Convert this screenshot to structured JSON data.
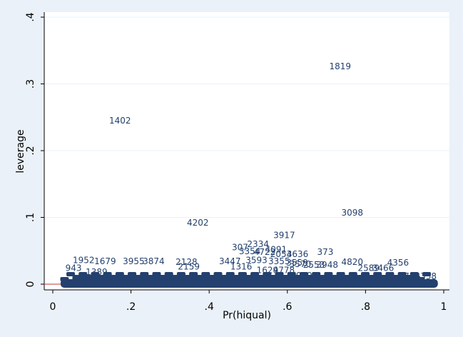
{
  "chart_data": {
    "type": "scatter",
    "marker": "observation-number-labels",
    "xlabel": "Pr(hiqual)",
    "ylabel": "leverage",
    "xlim": [
      0,
      1
    ],
    "ylim": [
      0,
      0.4
    ],
    "x_ticks": [
      0,
      0.2,
      0.4,
      0.6,
      0.8,
      1
    ],
    "x_tick_labels": [
      "0",
      ".2",
      ".4",
      ".6",
      ".8",
      "1"
    ],
    "y_ticks": [
      0,
      0.1,
      0.2,
      0.3,
      0.4
    ],
    "y_tick_labels": [
      "0",
      ".1",
      ".2",
      ".3",
      ".4"
    ],
    "grid": "horizontal",
    "legend": "none",
    "colors": {
      "background": "#eaf1f8",
      "plot_area": "#ffffff",
      "grid": "#eaf1f8",
      "marker": "#23406e",
      "reference_line": "#c0392b"
    },
    "points": [
      {
        "label": "1819",
        "x": 0.735,
        "y": 0.326
      },
      {
        "label": "1402",
        "x": 0.172,
        "y": 0.245
      },
      {
        "label": "3098",
        "x": 0.766,
        "y": 0.107
      },
      {
        "label": "4202",
        "x": 0.371,
        "y": 0.092
      },
      {
        "label": "3917",
        "x": 0.592,
        "y": 0.073
      },
      {
        "label": "2334",
        "x": 0.525,
        "y": 0.06
      },
      {
        "label": "307",
        "x": 0.479,
        "y": 0.055
      },
      {
        "label": "4091",
        "x": 0.571,
        "y": 0.052
      },
      {
        "label": "3354",
        "x": 0.504,
        "y": 0.049
      },
      {
        "label": "4722",
        "x": 0.542,
        "y": 0.048
      },
      {
        "label": "373",
        "x": 0.697,
        "y": 0.048
      },
      {
        "label": "2054",
        "x": 0.584,
        "y": 0.045
      },
      {
        "label": "3636",
        "x": 0.626,
        "y": 0.045
      },
      {
        "label": "1952",
        "x": 0.079,
        "y": 0.036
      },
      {
        "label": "1679",
        "x": 0.134,
        "y": 0.034
      },
      {
        "label": "3955",
        "x": 0.207,
        "y": 0.034
      },
      {
        "label": "3874",
        "x": 0.258,
        "y": 0.034
      },
      {
        "label": "2128",
        "x": 0.342,
        "y": 0.033
      },
      {
        "label": "3447",
        "x": 0.453,
        "y": 0.034
      },
      {
        "label": "3355",
        "x": 0.579,
        "y": 0.034
      },
      {
        "label": "3593",
        "x": 0.521,
        "y": 0.036
      },
      {
        "label": "3559",
        "x": 0.625,
        "y": 0.032
      },
      {
        "label": "4820",
        "x": 0.766,
        "y": 0.033
      },
      {
        "label": "4356",
        "x": 0.883,
        "y": 0.032
      },
      {
        "label": "3570",
        "x": 0.633,
        "y": 0.03
      },
      {
        "label": "2553",
        "x": 0.668,
        "y": 0.029
      },
      {
        "label": "3948",
        "x": 0.702,
        "y": 0.029
      },
      {
        "label": "2589",
        "x": 0.808,
        "y": 0.024
      },
      {
        "label": "3466",
        "x": 0.845,
        "y": 0.024
      },
      {
        "label": "1316",
        "x": 0.482,
        "y": 0.026
      },
      {
        "label": "2159",
        "x": 0.348,
        "y": 0.026
      },
      {
        "label": "4778",
        "x": 0.591,
        "y": 0.021
      },
      {
        "label": "1629",
        "x": 0.549,
        "y": 0.021
      },
      {
        "label": "1389",
        "x": 0.112,
        "y": 0.018
      },
      {
        "label": "3039",
        "x": 0.636,
        "y": 0.013
      },
      {
        "label": "4738",
        "x": 0.912,
        "y": 0.012
      },
      {
        "label": "1338",
        "x": 0.954,
        "y": 0.012
      },
      {
        "label": "943",
        "x": 0.053,
        "y": 0.024
      }
    ]
  }
}
